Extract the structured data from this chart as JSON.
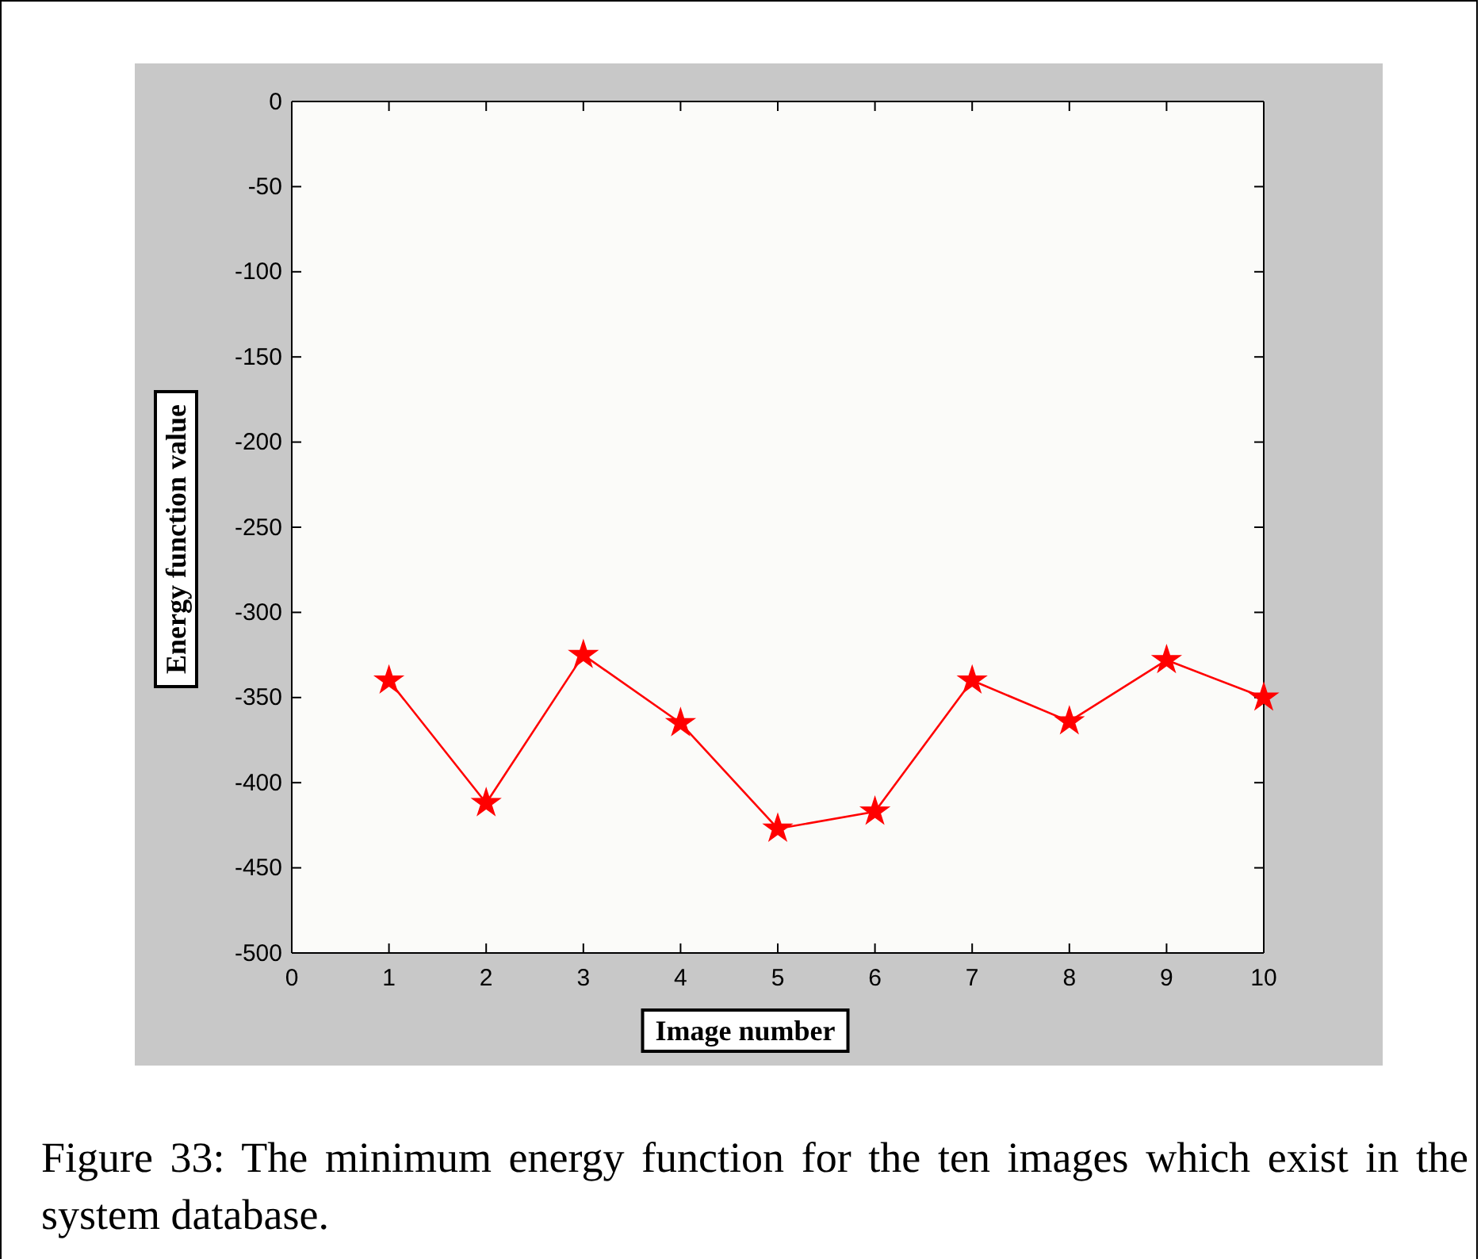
{
  "chart_data": {
    "type": "line",
    "xlabel": "Image number",
    "ylabel": "Energy function value",
    "x": [
      1,
      2,
      3,
      4,
      5,
      6,
      7,
      8,
      9,
      10
    ],
    "series": [
      {
        "color": "#ff0000",
        "values": [
          -340,
          -412,
          -325,
          -365,
          -427,
          -417,
          -340,
          -364,
          -328,
          -350
        ]
      }
    ],
    "xlim": [
      0,
      10
    ],
    "xticks": [
      0,
      1,
      2,
      3,
      4,
      5,
      6,
      7,
      8,
      9,
      10
    ],
    "ylim": [
      -500,
      0
    ],
    "yticks": [
      -500,
      -450,
      -400,
      -350,
      -300,
      -250,
      -200,
      -150,
      -100,
      -50,
      0
    ],
    "marker": "star",
    "line_style": "solid",
    "grid": false,
    "annotations": [
      "Figure 33: The minimum energy function for the ten images which exist in the system database."
    ]
  }
}
